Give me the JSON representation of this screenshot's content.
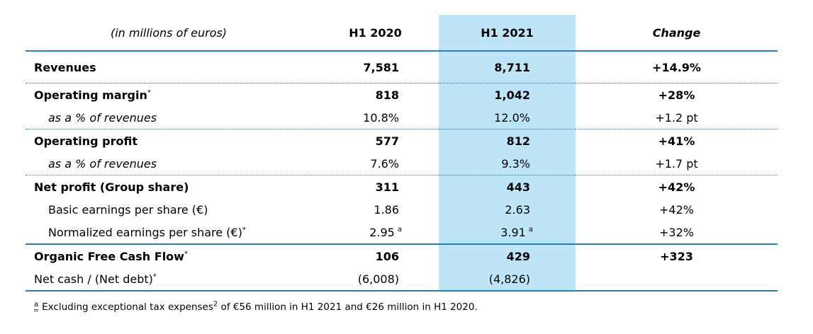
{
  "colors": {
    "highlight_column": "#BDE5F7",
    "rule_line": "#2F7CA8",
    "anchor_underline": "#3A5FCD",
    "text": "#000000"
  },
  "table": {
    "header": {
      "unit_label": "(in millions of euros)",
      "h1_2020": "H1 2020",
      "h1_2021": "H1 2021",
      "change": "Change"
    },
    "rows": [
      {
        "label": "Revenues",
        "h2020": "7,581",
        "h2021": "8,711",
        "change": "+14.9%"
      },
      {
        "label": "Operating margin",
        "label_sup": "*",
        "h2020": "818",
        "h2021": "1,042",
        "change": "+28%"
      },
      {
        "label": "as a % of revenues",
        "h2020": "10.8%",
        "h2021": "12.0%",
        "change": "+1.2 pt"
      },
      {
        "label": "Operating profit",
        "h2020": "577",
        "h2021": "812",
        "change": "+41%"
      },
      {
        "label": "as a % of revenues",
        "h2020": "7.6%",
        "h2021": "9.3%",
        "change": "+1.7 pt"
      },
      {
        "label": "Net profit (Group share)",
        "h2020": "311",
        "h2021": "443",
        "change": "+42%"
      },
      {
        "label": "Basic earnings per share (€)",
        "h2020": "1.86",
        "h2021": "2.63",
        "change": "+42%"
      },
      {
        "label": "Normalized earnings per share (€)",
        "label_sup": "*",
        "h2020": "2.95",
        "h2020_sup": "a",
        "h2021": "3.91",
        "h2021_sup": "a",
        "change": "+32%"
      },
      {
        "label": "Organic Free Cash Flow",
        "label_sup": "*",
        "h2020": "106",
        "h2021": "429",
        "change": "+323"
      },
      {
        "label": "Net cash / (Net debt)",
        "label_sup": "*",
        "h2020": "(6,008)",
        "h2021": "(4,826)",
        "change": ""
      }
    ]
  },
  "footnote": {
    "anchor": "a",
    "text_before_ref": "Excluding exceptional tax expenses",
    "ref": "2",
    "text_after_ref": " of €56 million in H1 2021 and €26 million in H1 2020."
  }
}
